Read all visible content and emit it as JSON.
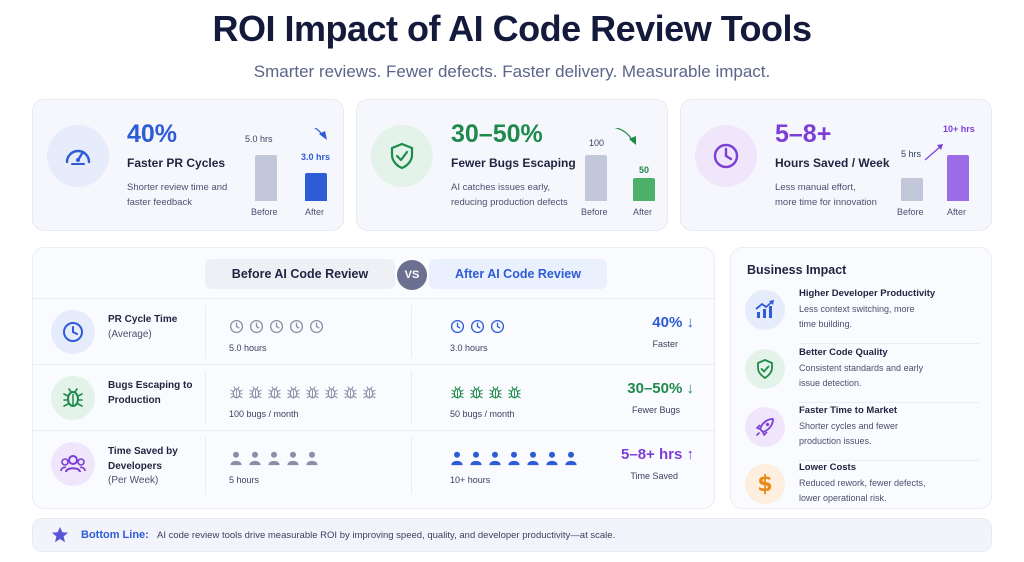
{
  "title": "ROI Impact of AI Code Review Tools",
  "subtitle": "Smarter reviews. Fewer defects. Faster delivery. Measurable impact.",
  "colors": {
    "blue": "#2e5bd6",
    "green": "#1f8a4c",
    "purple": "#7b3fd6",
    "gray_bar": "#c3c7da"
  },
  "cards": [
    {
      "icon": "speedometer-icon",
      "value": "40%",
      "label": "Faster PR Cycles",
      "desc_line1": "Shorter review time and",
      "desc_line2": "faster feedback",
      "before_label": "5.0 hrs",
      "after_label": "3.0 hrs",
      "before_value": 5.0,
      "after_value": 3.0,
      "axis_before": "Before",
      "axis_after": "After"
    },
    {
      "icon": "shield-check-icon",
      "value": "30–50%",
      "label": "Fewer Bugs Escaping",
      "desc_line1": "AI catches issues early,",
      "desc_line2": "reducing production defects",
      "before_label": "100",
      "after_label": "50",
      "before_value": 100,
      "after_value": 50,
      "axis_before": "Before",
      "axis_after": "After"
    },
    {
      "icon": "clock-icon",
      "value": "5–8+",
      "label": "Hours Saved / Week",
      "desc_line1": "Less manual effort,",
      "desc_line2": "more time for innovation",
      "before_label": "5 hrs",
      "after_label": "10+ hrs",
      "before_value": 5,
      "after_value": 10,
      "axis_before": "Before",
      "axis_after": "After"
    }
  ],
  "comparison": {
    "before_header": "Before AI Code Review",
    "vs": "VS",
    "after_header": "After AI Code Review",
    "rows": [
      {
        "icon": "clock-icon",
        "label": "PR Cycle Time",
        "sub": "(Average)",
        "before_count": 5,
        "before_value": "5.0 hours",
        "after_count": 3,
        "after_value": "3.0 hours",
        "result": "40% ↓",
        "result_label": "Faster"
      },
      {
        "icon": "bug-icon",
        "label": "Bugs Escaping to Production",
        "sub": "",
        "before_count": 8,
        "before_value": "100 bugs / month",
        "after_count": 4,
        "after_value": "50 bugs / month",
        "result": "30–50% ↓",
        "result_label": "Fewer Bugs"
      },
      {
        "icon": "users-icon",
        "label": "Time Saved by Developers",
        "sub": "(Per Week)",
        "before_count": 5,
        "before_value": "5 hours",
        "after_count": 7,
        "after_value": "10+ hours",
        "result": "5–8+ hrs ↑",
        "result_label": "Time Saved"
      }
    ]
  },
  "impact": {
    "title": "Business Impact",
    "items": [
      {
        "icon": "chart-growth-icon",
        "heading": "Higher Developer Productivity",
        "desc_line1": "Less context switching, more",
        "desc_line2": "time building."
      },
      {
        "icon": "shield-check-icon",
        "heading": "Better Code Quality",
        "desc_line1": "Consistent standards and early",
        "desc_line2": "issue detection."
      },
      {
        "icon": "rocket-icon",
        "heading": "Faster Time to Market",
        "desc_line1": "Shorter cycles and fewer",
        "desc_line2": "production issues."
      },
      {
        "icon": "dollar-icon",
        "heading": "Lower Costs",
        "desc_line1": "Reduced rework, fewer defects,",
        "desc_line2": "lower operational risk."
      }
    ]
  },
  "bottom": {
    "icon": "star-icon",
    "strong": "Bottom Line:",
    "text": "AI code review tools drive measurable ROI by improving speed, quality, and developer productivity—at scale."
  }
}
